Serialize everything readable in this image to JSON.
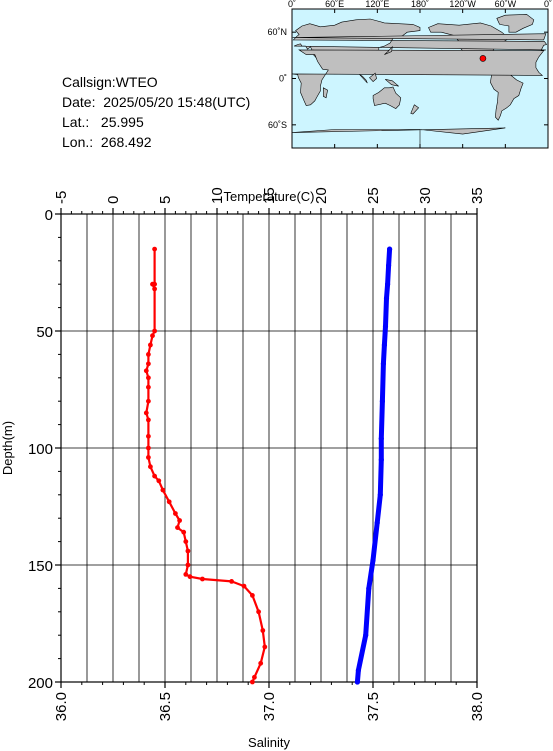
{
  "station": {
    "callsign_label": "Callsign:",
    "callsign": "WTEO",
    "date_label": "Date:",
    "date": "2025/05/20 15:48(UTC)",
    "lat_label": "Lat.:",
    "lat": "25.995",
    "lon_label": "Lon.:",
    "lon": "268.492"
  },
  "map": {
    "top_ticks": [
      "0˚",
      "60˚E",
      "120˚E",
      "180˚",
      "120˚W",
      "60˚W",
      "0˚"
    ],
    "left_ticks": [
      "60˚N",
      "0˚",
      "60˚S"
    ],
    "ocean_color": "#cdf5ff",
    "land_color": "#bfbfbf",
    "marker_color": "#ff0000",
    "marker_lat": 25.995,
    "marker_lon": 268.492
  },
  "chart_data": {
    "type": "line",
    "ylabel": "Depth(m)",
    "ylim": [
      200,
      0
    ],
    "yticks": [
      "0",
      "50",
      "100",
      "150",
      "200"
    ],
    "temperature_axis": {
      "label": "Temperature(C)",
      "range": [
        -5,
        35
      ],
      "ticks": [
        "-5",
        "0",
        "5",
        "10",
        "15",
        "20",
        "25",
        "30",
        "35"
      ]
    },
    "salinity_axis": {
      "label": "Salinity",
      "range": [
        36.0,
        38.0
      ],
      "ticks": [
        "36.0",
        "36.5",
        "37.0",
        "37.5",
        "38.0"
      ]
    },
    "grid": true,
    "series": [
      {
        "axis": "salinity",
        "color": "#ff0000",
        "points": [
          [
            36.45,
            15
          ],
          [
            36.45,
            30
          ],
          [
            36.44,
            30
          ],
          [
            36.45,
            32
          ],
          [
            36.45,
            50
          ],
          [
            36.44,
            52
          ],
          [
            36.43,
            56
          ],
          [
            36.42,
            60
          ],
          [
            36.42,
            64
          ],
          [
            36.41,
            67
          ],
          [
            36.42,
            70
          ],
          [
            36.42,
            74
          ],
          [
            36.42,
            80
          ],
          [
            36.41,
            85
          ],
          [
            36.42,
            88
          ],
          [
            36.42,
            95
          ],
          [
            36.42,
            100
          ],
          [
            36.42,
            104
          ],
          [
            36.43,
            108
          ],
          [
            36.45,
            112
          ],
          [
            36.47,
            114
          ],
          [
            36.49,
            118
          ],
          [
            36.52,
            123
          ],
          [
            36.55,
            128
          ],
          [
            36.57,
            131
          ],
          [
            36.56,
            134
          ],
          [
            36.59,
            136
          ],
          [
            36.6,
            140
          ],
          [
            36.61,
            144
          ],
          [
            36.61,
            150
          ],
          [
            36.6,
            154
          ],
          [
            36.62,
            155
          ],
          [
            36.68,
            156
          ],
          [
            36.82,
            157
          ],
          [
            36.88,
            159
          ],
          [
            36.92,
            163
          ],
          [
            36.95,
            170
          ],
          [
            36.97,
            178
          ],
          [
            36.98,
            185
          ],
          [
            36.96,
            192
          ],
          [
            36.93,
            198
          ],
          [
            36.92,
            200
          ]
        ]
      },
      {
        "axis": "temperature",
        "color": "#0000ff",
        "points": [
          [
            26.6,
            15
          ],
          [
            26.5,
            22
          ],
          [
            26.4,
            30
          ],
          [
            26.3,
            36
          ],
          [
            26.2,
            48
          ],
          [
            26.1,
            56
          ],
          [
            26.0,
            64
          ],
          [
            25.9,
            80
          ],
          [
            25.8,
            96
          ],
          [
            25.8,
            105
          ],
          [
            25.7,
            120
          ],
          [
            25.4,
            132
          ],
          [
            25.0,
            148
          ],
          [
            24.6,
            160
          ],
          [
            24.3,
            180
          ],
          [
            23.6,
            195
          ],
          [
            23.5,
            200
          ]
        ]
      }
    ]
  }
}
